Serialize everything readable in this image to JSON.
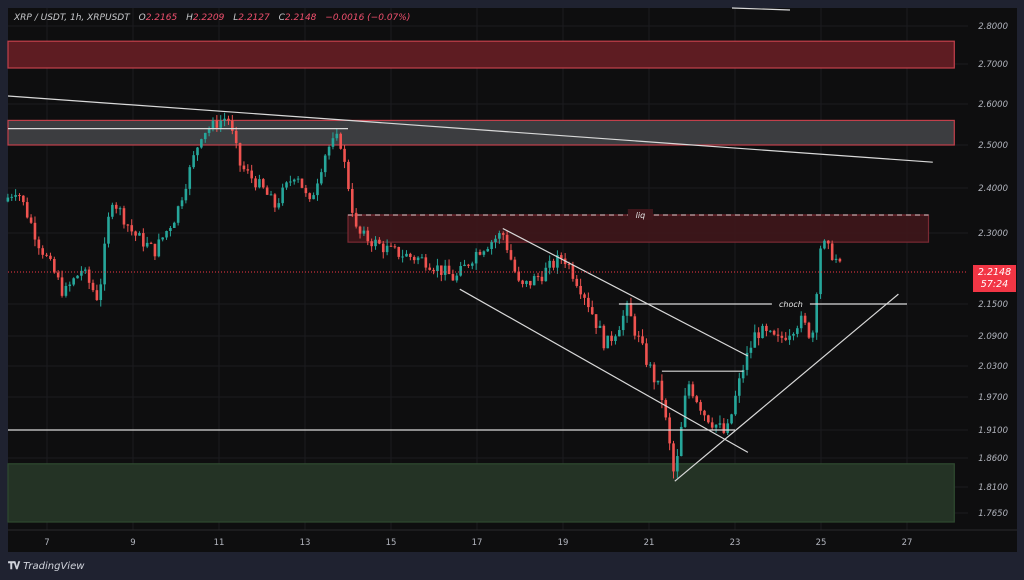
{
  "header": {
    "symbol": "XRP / USDT, 1h, XRPUSDT",
    "open_label": "O",
    "open": "2.2165",
    "high_label": "H",
    "high": "2.2209",
    "low_label": "L",
    "low": "2.2127",
    "close_label": "C",
    "close": "2.2148",
    "change": "−0.0016 (−0.07%)"
  },
  "price_tag": {
    "price": "2.2148",
    "countdown": "57:24",
    "color": "#f23645"
  },
  "footer": {
    "brand": "TradingView",
    "logo_icon": "tradingview-logo-icon"
  },
  "colors": {
    "background": "#0e0e0f",
    "frame": "#1f2230",
    "up_candle": "#26a69a",
    "down_candle": "#ef5350",
    "supply_zone": "#5e1c22",
    "supply_border": "#c2404b",
    "demand_zone": "#243325",
    "gray_zone": "#3c3d40",
    "drawing_lines": "#d9d9d9"
  },
  "chart_data": {
    "type": "candlestick",
    "title": "XRP / USDT, 1h, XRPUSDT",
    "xlabel": "",
    "ylabel": "",
    "x_ticks": [
      "7",
      "9",
      "11",
      "13",
      "15",
      "17",
      "19",
      "21",
      "23",
      "25",
      "27"
    ],
    "y_ticks": [
      "2.8000",
      "2.7000",
      "2.6000",
      "2.5000",
      "2.4000",
      "2.3000",
      "2.1500",
      "2.0900",
      "2.0300",
      "1.9700",
      "1.9100",
      "1.8600",
      "1.8100",
      "1.7650"
    ],
    "ylim": [
      1.74,
      2.83
    ],
    "grid": true,
    "last_price": 2.2148,
    "ohlc_last": {
      "open": 2.2165,
      "high": 2.2209,
      "low": 2.2127,
      "close": 2.2148,
      "change": -0.0016,
      "change_pct": -0.07
    },
    "approx_price_path": [
      {
        "day": 6.0,
        "price": 2.37
      },
      {
        "day": 6.3,
        "price": 2.4
      },
      {
        "day": 6.8,
        "price": 2.28
      },
      {
        "day": 7.4,
        "price": 2.17
      },
      {
        "day": 7.8,
        "price": 2.22
      },
      {
        "day": 8.2,
        "price": 2.16
      },
      {
        "day": 8.5,
        "price": 2.38
      },
      {
        "day": 9.0,
        "price": 2.3
      },
      {
        "day": 9.5,
        "price": 2.26
      },
      {
        "day": 10.0,
        "price": 2.34
      },
      {
        "day": 10.6,
        "price": 2.53
      },
      {
        "day": 11.2,
        "price": 2.57
      },
      {
        "day": 11.5,
        "price": 2.45
      },
      {
        "day": 12.0,
        "price": 2.4
      },
      {
        "day": 12.3,
        "price": 2.36
      },
      {
        "day": 12.8,
        "price": 2.44
      },
      {
        "day": 13.1,
        "price": 2.36
      },
      {
        "day": 13.5,
        "price": 2.49
      },
      {
        "day": 13.8,
        "price": 2.52
      },
      {
        "day": 14.2,
        "price": 2.3
      },
      {
        "day": 15.0,
        "price": 2.26
      },
      {
        "day": 15.8,
        "price": 2.24
      },
      {
        "day": 16.5,
        "price": 2.2
      },
      {
        "day": 17.0,
        "price": 2.26
      },
      {
        "day": 17.6,
        "price": 2.3
      },
      {
        "day": 18.0,
        "price": 2.18
      },
      {
        "day": 18.5,
        "price": 2.21
      },
      {
        "day": 19.0,
        "price": 2.25
      },
      {
        "day": 19.5,
        "price": 2.17
      },
      {
        "day": 20.0,
        "price": 2.07
      },
      {
        "day": 20.5,
        "price": 2.14
      },
      {
        "day": 20.9,
        "price": 2.05
      },
      {
        "day": 21.3,
        "price": 1.97
      },
      {
        "day": 21.6,
        "price": 1.82
      },
      {
        "day": 21.9,
        "price": 2.0
      },
      {
        "day": 22.3,
        "price": 1.94
      },
      {
        "day": 22.8,
        "price": 1.9
      },
      {
        "day": 23.2,
        "price": 2.03
      },
      {
        "day": 23.5,
        "price": 2.1
      },
      {
        "day": 24.0,
        "price": 2.08
      },
      {
        "day": 24.5,
        "price": 2.12
      },
      {
        "day": 24.8,
        "price": 2.09
      },
      {
        "day": 25.0,
        "price": 2.28
      },
      {
        "day": 25.3,
        "price": 2.25
      },
      {
        "day": 25.5,
        "price": 2.2148
      }
    ],
    "zones": [
      {
        "type": "supply",
        "from": 2.69,
        "to": 2.76,
        "x_start_day": 6,
        "x_end_day": 28.1
      },
      {
        "type": "gray-resistance",
        "from": 2.5,
        "to": 2.56,
        "x_start_day": 6,
        "x_end_day": 28.1
      },
      {
        "type": "supply-liq",
        "label": "liq",
        "from": 2.28,
        "to": 2.34,
        "x_start_day": 14.0,
        "x_end_day": 27.5
      },
      {
        "type": "demand",
        "from": 1.75,
        "to": 1.85,
        "x_start_day": 6,
        "x_end_day": 28.1
      }
    ],
    "annotations": [
      {
        "type": "label",
        "text": "liq",
        "price": 2.34,
        "day": 20.8
      },
      {
        "type": "label",
        "text": "choch",
        "price": 2.15,
        "day": 24.3
      },
      {
        "type": "hline",
        "price": 2.15,
        "from_day": 20.3,
        "to_day": 27.0
      },
      {
        "type": "hline",
        "price": 1.91,
        "from_day": 6,
        "to_day": 23.0
      },
      {
        "type": "hline",
        "price": 2.02,
        "from_day": 21.3,
        "to_day": 23.2
      },
      {
        "type": "hline",
        "price": 2.54,
        "from_day": 6,
        "to_day": 14.0
      },
      {
        "type": "trendline",
        "desc": "long descending resistance",
        "from": [
          6,
          2.62
        ],
        "to": [
          27.6,
          2.46
        ]
      },
      {
        "type": "trendline",
        "desc": "channel upper",
        "from": [
          17.6,
          2.31
        ],
        "to": [
          23.3,
          2.05
        ]
      },
      {
        "type": "trendline",
        "desc": "channel lower",
        "from": [
          16.6,
          2.18
        ],
        "to": [
          23.3,
          1.87
        ]
      },
      {
        "type": "trendline",
        "desc": "ascending support",
        "from": [
          21.6,
          1.82
        ],
        "to": [
          26.8,
          2.17
        ]
      }
    ]
  }
}
